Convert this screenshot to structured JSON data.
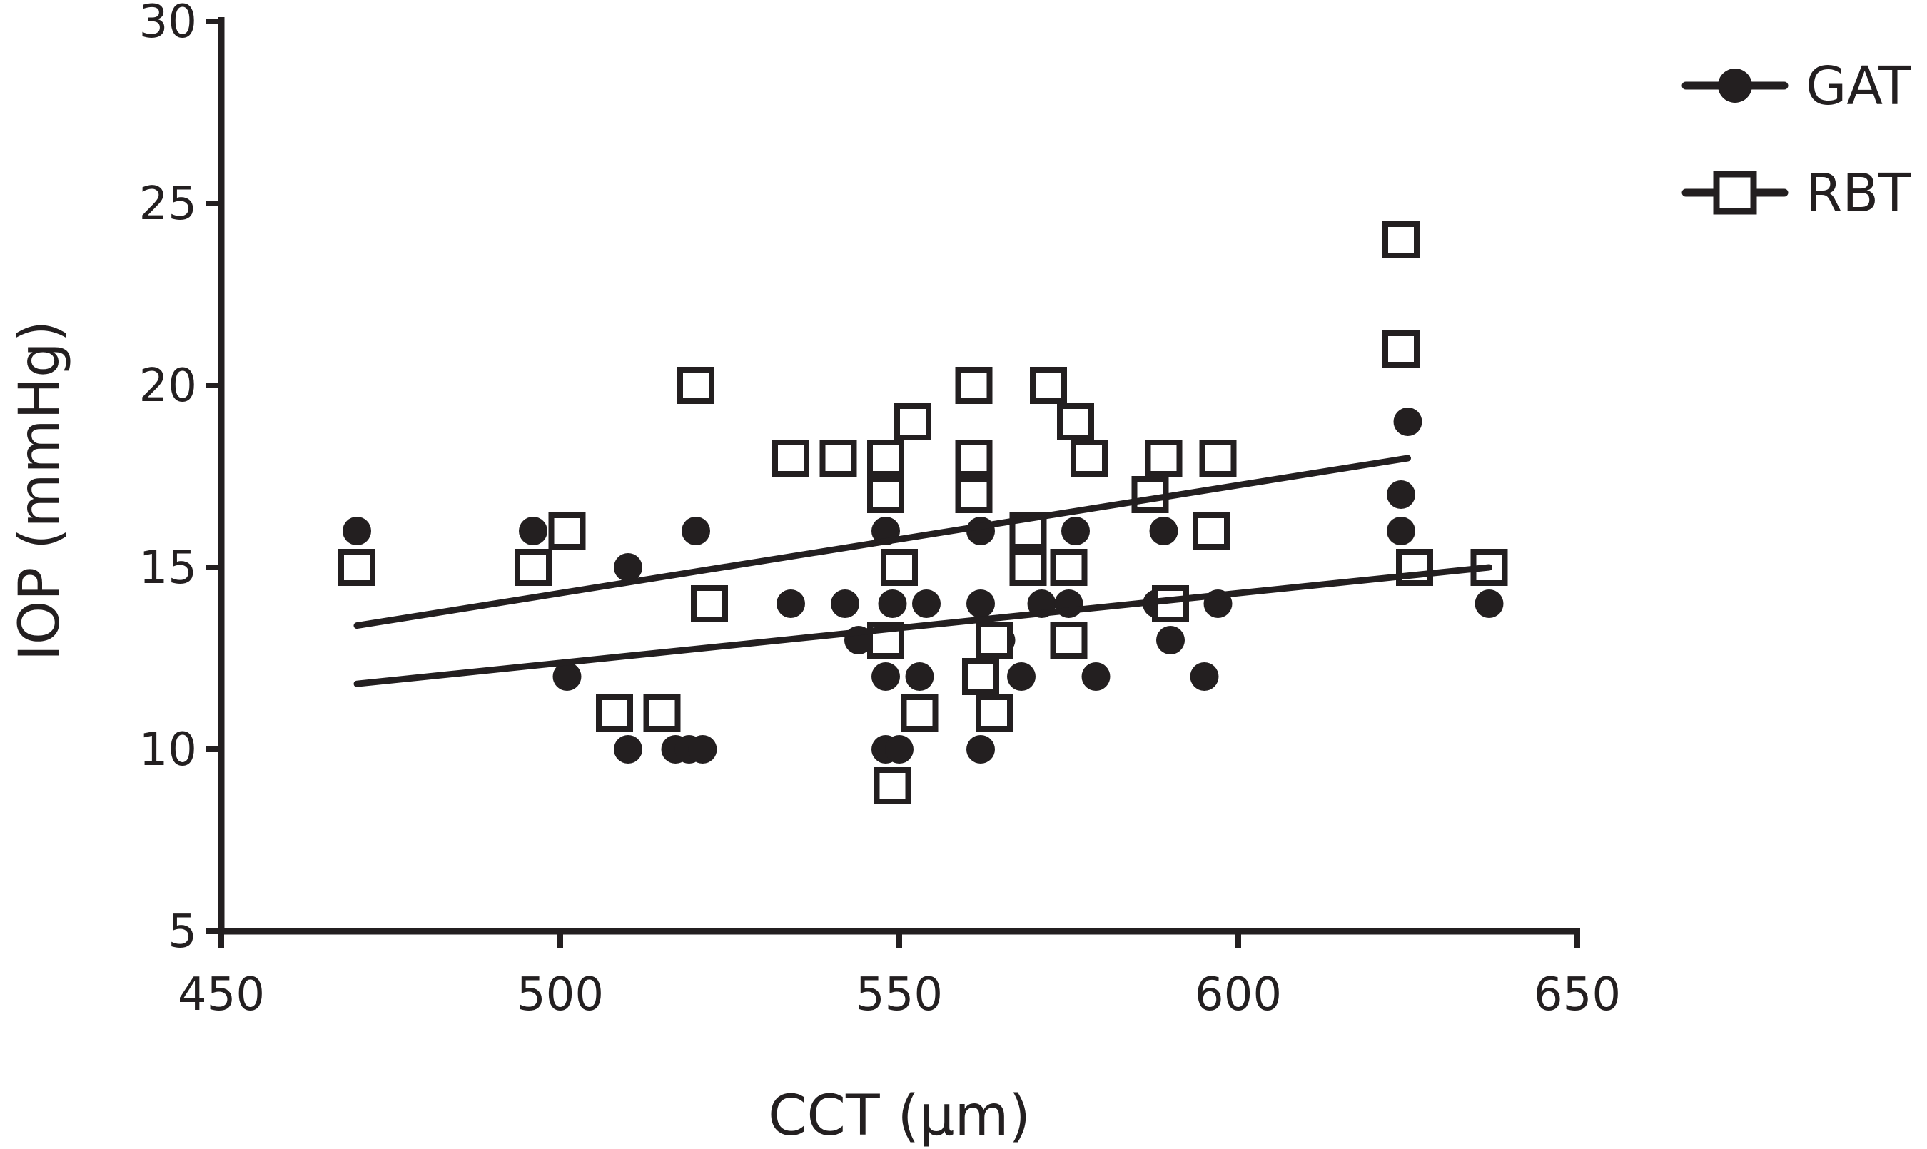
{
  "chart_data": {
    "type": "scatter",
    "title": "",
    "xlabel": "CCT (µm)",
    "ylabel": "IOP (mmHg)",
    "xlim": [
      450,
      650
    ],
    "ylim": [
      5,
      30
    ],
    "xticks": [
      450,
      500,
      550,
      600,
      650
    ],
    "yticks": [
      5,
      10,
      15,
      20,
      25,
      30
    ],
    "x_tick_labels": [
      "450",
      "500",
      "550",
      "600",
      "650"
    ],
    "y_tick_labels": [
      "5",
      "10",
      "15",
      "20",
      "25",
      "30"
    ],
    "grid": false,
    "legend_position": "top-right",
    "colors": {
      "ink": "#231f20",
      "background": "#ffffff"
    },
    "series": [
      {
        "name": "GAT",
        "marker": "filled-circle",
        "points": [
          [
            470,
            16
          ],
          [
            496,
            16
          ],
          [
            501,
            12
          ],
          [
            510,
            15
          ],
          [
            510,
            10
          ],
          [
            517,
            10
          ],
          [
            519,
            10
          ],
          [
            520,
            16
          ],
          [
            521,
            10
          ],
          [
            534,
            14
          ],
          [
            542,
            14
          ],
          [
            544,
            13
          ],
          [
            548,
            16
          ],
          [
            548,
            12
          ],
          [
            548,
            10
          ],
          [
            549,
            14
          ],
          [
            550,
            10
          ],
          [
            553,
            12
          ],
          [
            554,
            14
          ],
          [
            562,
            14
          ],
          [
            562,
            10
          ],
          [
            562,
            16
          ],
          [
            565,
            13
          ],
          [
            568,
            12
          ],
          [
            571,
            14
          ],
          [
            575,
            14
          ],
          [
            576,
            16
          ],
          [
            579,
            12
          ],
          [
            588,
            14
          ],
          [
            589,
            16
          ],
          [
            590,
            13
          ],
          [
            595,
            12
          ],
          [
            597,
            14
          ],
          [
            624,
            17
          ],
          [
            624,
            16
          ],
          [
            625,
            19
          ],
          [
            637,
            14
          ]
        ],
        "regression": [
          [
            470,
            11.8
          ],
          [
            637,
            15.0
          ]
        ]
      },
      {
        "name": "RBT",
        "marker": "open-square",
        "points": [
          [
            470,
            15
          ],
          [
            496,
            15
          ],
          [
            501,
            16
          ],
          [
            508,
            11
          ],
          [
            515,
            11
          ],
          [
            520,
            20
          ],
          [
            522,
            14
          ],
          [
            534,
            18
          ],
          [
            541,
            18
          ],
          [
            548,
            18
          ],
          [
            548,
            17
          ],
          [
            548,
            13
          ],
          [
            549,
            9
          ],
          [
            550,
            15
          ],
          [
            552,
            19
          ],
          [
            553,
            11
          ],
          [
            561,
            20
          ],
          [
            561,
            18
          ],
          [
            561,
            17
          ],
          [
            562,
            12
          ],
          [
            564,
            13
          ],
          [
            564,
            11
          ],
          [
            569,
            16
          ],
          [
            569,
            15
          ],
          [
            572,
            20
          ],
          [
            575,
            13
          ],
          [
            575,
            15
          ],
          [
            576,
            19
          ],
          [
            578,
            18
          ],
          [
            587,
            17
          ],
          [
            589,
            18
          ],
          [
            590,
            14
          ],
          [
            596,
            16
          ],
          [
            597,
            18
          ],
          [
            624,
            24
          ],
          [
            624,
            21
          ],
          [
            626,
            15
          ],
          [
            637,
            15
          ]
        ],
        "regression": [
          [
            470,
            13.4
          ],
          [
            625,
            18.0
          ]
        ]
      }
    ]
  }
}
